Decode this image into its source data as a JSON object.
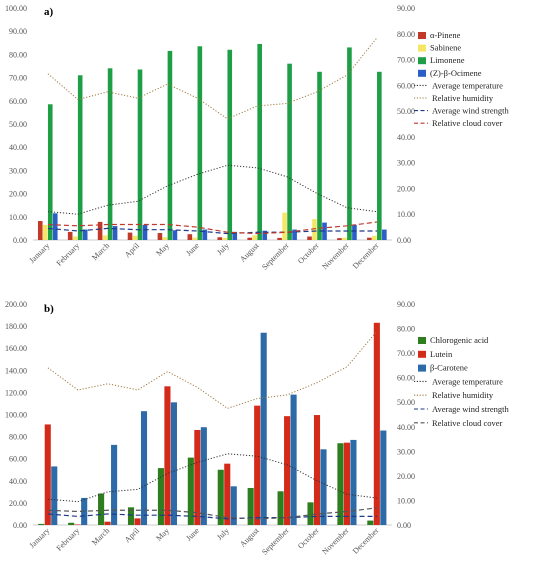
{
  "chart_data": [
    {
      "type": "bar",
      "panel_label": "a)",
      "categories": [
        "January",
        "February",
        "March",
        "April",
        "May",
        "June",
        "July",
        "August",
        "September",
        "October",
        "November",
        "December"
      ],
      "ylim_left": [
        0,
        100
      ],
      "ylim_right": [
        0,
        90
      ],
      "yticks_left": [
        "0.00",
        "10.00",
        "20.00",
        "30.00",
        "40.00",
        "50.00",
        "60.00",
        "70.00",
        "80.00",
        "90.00",
        "100.00"
      ],
      "yticks_right": [
        "0.00",
        "10.00",
        "20.00",
        "30.00",
        "40.00",
        "50.00",
        "60.00",
        "70.00",
        "80.00",
        "90.00"
      ],
      "series": [
        {
          "name": "α-Pinene",
          "axis": "left",
          "color": "#c0392b",
          "values": [
            8.2,
            3.5,
            7.8,
            3.2,
            3.0,
            2.5,
            1.2,
            1.0,
            0.9,
            1.5,
            0.8,
            1.0
          ]
        },
        {
          "name": "Sabinene",
          "axis": "left",
          "color": "#f5e663",
          "values": [
            6.5,
            1.5,
            2.0,
            1.8,
            1.2,
            1.0,
            0.9,
            2.0,
            11.8,
            9.0,
            1.0,
            1.8
          ]
        },
        {
          "name": "Limonene",
          "axis": "left",
          "color": "#1e9e45",
          "values": [
            58.5,
            71.0,
            74.0,
            73.5,
            81.5,
            83.5,
            82.0,
            84.5,
            76.0,
            72.5,
            83.0,
            72.5
          ]
        },
        {
          "name": "(Z)-β-Ocimene",
          "axis": "left",
          "color": "#2b5fc7",
          "values": [
            11.5,
            4.5,
            6.0,
            6.5,
            4.2,
            4.5,
            3.5,
            4.0,
            4.5,
            7.5,
            6.5,
            4.5
          ]
        }
      ],
      "lines": [
        {
          "name": "Average temperature",
          "axis": "right",
          "color": "#333333",
          "style": "dotted",
          "values": [
            11.0,
            10.0,
            13.5,
            15.0,
            21.0,
            25.5,
            29.0,
            28.0,
            24.5,
            18.0,
            12.5,
            11.0
          ]
        },
        {
          "name": "Relative humidity",
          "axis": "right",
          "color": "#a07a40",
          "style": "dotted",
          "values": [
            64.5,
            54.5,
            57.5,
            55.0,
            60.5,
            55.0,
            47.0,
            52.0,
            53.0,
            57.5,
            64.0,
            78.5
          ]
        },
        {
          "name": "Average wind strength",
          "axis": "right",
          "color": "#1f3a8a",
          "style": "dashed",
          "values": [
            4.5,
            3.5,
            4.5,
            4.0,
            4.0,
            3.5,
            2.5,
            3.0,
            3.0,
            3.5,
            3.5,
            3.5
          ]
        },
        {
          "name": "Relative cloud cover",
          "axis": "right",
          "color": "#c0392b",
          "style": "dashed",
          "values": [
            6.0,
            5.5,
            6.0,
            6.0,
            6.0,
            5.0,
            3.0,
            2.5,
            3.0,
            4.5,
            5.5,
            7.0
          ]
        }
      ]
    },
    {
      "type": "bar",
      "panel_label": "b)",
      "categories": [
        "January",
        "February",
        "March",
        "April",
        "May",
        "June",
        "July",
        "August",
        "September",
        "October",
        "November",
        "December"
      ],
      "ylim_left": [
        0,
        200
      ],
      "ylim_right": [
        0,
        90
      ],
      "yticks_left": [
        "0.00",
        "20.00",
        "40.00",
        "60.00",
        "80.00",
        "100.00",
        "120.00",
        "140.00",
        "160.00",
        "180.00",
        "200.00"
      ],
      "yticks_right": [
        "0.00",
        "10.00",
        "20.00",
        "30.00",
        "40.00",
        "50.00",
        "60.00",
        "70.00",
        "80.00",
        "90.00"
      ],
      "series": [
        {
          "name": "Chlorogenic acid",
          "axis": "left",
          "color": "#2e7d1e",
          "values": [
            1.0,
            2.0,
            28.5,
            16.0,
            51.5,
            61.0,
            50.0,
            33.5,
            30.5,
            20.5,
            74.0,
            4.0
          ]
        },
        {
          "name": "Lutein",
          "axis": "left",
          "color": "#d42a1a",
          "values": [
            91.0,
            0.5,
            3.0,
            6.0,
            125.5,
            86.0,
            55.5,
            108.0,
            98.5,
            99.5,
            74.5,
            183.0
          ]
        },
        {
          "name": "β-Carotene",
          "axis": "left",
          "color": "#2c6aa8",
          "values": [
            53.0,
            24.5,
            72.5,
            103.0,
            111.0,
            88.5,
            35.0,
            174.0,
            118.0,
            68.5,
            77.0,
            85.5
          ]
        }
      ],
      "lines": [
        {
          "name": "Average temperature",
          "axis": "right",
          "color": "#333333",
          "style": "dotted",
          "values": [
            10.5,
            9.5,
            13.5,
            14.5,
            21.0,
            25.5,
            29.0,
            28.0,
            24.5,
            18.0,
            12.5,
            11.0
          ]
        },
        {
          "name": "Relative humidity",
          "axis": "right",
          "color": "#a07a40",
          "style": "dotted",
          "values": [
            64.0,
            55.0,
            57.5,
            55.0,
            62.5,
            56.0,
            47.5,
            51.5,
            53.0,
            58.0,
            64.5,
            79.0
          ]
        },
        {
          "name": "Average wind strength",
          "axis": "right",
          "color": "#1f3a8a",
          "style": "dashed",
          "values": [
            4.5,
            3.5,
            4.5,
            4.0,
            4.0,
            3.5,
            2.5,
            3.0,
            3.0,
            3.5,
            3.5,
            3.5
          ]
        },
        {
          "name": "Relative cloud cover",
          "axis": "right",
          "color": "#555555",
          "style": "dashed",
          "values": [
            6.0,
            5.5,
            6.0,
            6.0,
            6.0,
            5.0,
            3.0,
            2.5,
            3.0,
            4.5,
            5.5,
            7.0
          ]
        }
      ]
    }
  ]
}
